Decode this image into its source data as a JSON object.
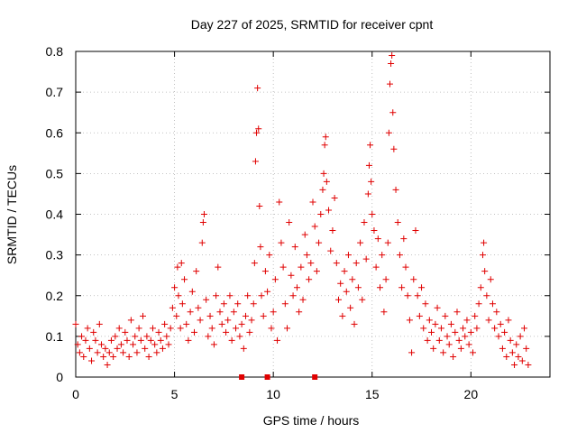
{
  "chart_data": {
    "type": "scatter",
    "title": "Day 227 of 2025, SRMTID for receiver cpnt",
    "xlabel": "GPS time / hours",
    "ylabel": "SRMTID / TECUs",
    "xlim": [
      0,
      24
    ],
    "ylim": [
      0,
      0.8
    ],
    "xticks": [
      0,
      5,
      10,
      15,
      20
    ],
    "xtick_labels": [
      "0",
      "5",
      "10",
      "15",
      "20"
    ],
    "yticks": [
      0,
      0.1,
      0.2,
      0.3,
      0.4,
      0.5,
      0.6,
      0.7,
      0.8
    ],
    "ytick_labels": [
      "0",
      "0.1",
      "0.2",
      "0.3",
      "0.4",
      "0.5",
      "0.6",
      "0.7",
      "0.8"
    ],
    "grid": true,
    "marker": "+",
    "color": "#e00000",
    "baseline_markers_x": [
      8.4,
      9.7,
      12.1
    ],
    "series": [
      {
        "name": "SRMTID",
        "points": [
          [
            0.0,
            0.13
          ],
          [
            0.1,
            0.08
          ],
          [
            0.2,
            0.06
          ],
          [
            0.3,
            0.1
          ],
          [
            0.4,
            0.05
          ],
          [
            0.5,
            0.09
          ],
          [
            0.6,
            0.12
          ],
          [
            0.7,
            0.07
          ],
          [
            0.8,
            0.04
          ],
          [
            0.9,
            0.11
          ],
          [
            1.0,
            0.09
          ],
          [
            1.1,
            0.06
          ],
          [
            1.2,
            0.13
          ],
          [
            1.3,
            0.08
          ],
          [
            1.4,
            0.05
          ],
          [
            1.5,
            0.07
          ],
          [
            1.6,
            0.03
          ],
          [
            1.7,
            0.06
          ],
          [
            1.8,
            0.09
          ],
          [
            1.9,
            0.05
          ],
          [
            2.0,
            0.1
          ],
          [
            2.1,
            0.07
          ],
          [
            2.2,
            0.12
          ],
          [
            2.3,
            0.08
          ],
          [
            2.4,
            0.06
          ],
          [
            2.5,
            0.11
          ],
          [
            2.6,
            0.09
          ],
          [
            2.7,
            0.05
          ],
          [
            2.8,
            0.14
          ],
          [
            2.9,
            0.08
          ],
          [
            3.0,
            0.1
          ],
          [
            3.1,
            0.06
          ],
          [
            3.2,
            0.12
          ],
          [
            3.3,
            0.09
          ],
          [
            3.4,
            0.15
          ],
          [
            3.5,
            0.07
          ],
          [
            3.6,
            0.1
          ],
          [
            3.7,
            0.05
          ],
          [
            3.8,
            0.09
          ],
          [
            3.9,
            0.12
          ],
          [
            4.0,
            0.08
          ],
          [
            4.1,
            0.06
          ],
          [
            4.2,
            0.11
          ],
          [
            4.3,
            0.09
          ],
          [
            4.4,
            0.07
          ],
          [
            4.5,
            0.13
          ],
          [
            4.6,
            0.1
          ],
          [
            4.7,
            0.08
          ],
          [
            4.8,
            0.12
          ],
          [
            4.9,
            0.17
          ],
          [
            5.0,
            0.22
          ],
          [
            5.1,
            0.15
          ],
          [
            5.15,
            0.27
          ],
          [
            5.2,
            0.2
          ],
          [
            5.3,
            0.12
          ],
          [
            5.35,
            0.28
          ],
          [
            5.4,
            0.18
          ],
          [
            5.5,
            0.24
          ],
          [
            5.6,
            0.13
          ],
          [
            5.7,
            0.09
          ],
          [
            5.8,
            0.16
          ],
          [
            5.9,
            0.21
          ],
          [
            6.0,
            0.11
          ],
          [
            6.1,
            0.26
          ],
          [
            6.2,
            0.17
          ],
          [
            6.3,
            0.14
          ],
          [
            6.4,
            0.33
          ],
          [
            6.45,
            0.38
          ],
          [
            6.5,
            0.4
          ],
          [
            6.6,
            0.19
          ],
          [
            6.7,
            0.1
          ],
          [
            6.8,
            0.15
          ],
          [
            6.9,
            0.12
          ],
          [
            7.0,
            0.08
          ],
          [
            7.1,
            0.2
          ],
          [
            7.2,
            0.27
          ],
          [
            7.3,
            0.16
          ],
          [
            7.4,
            0.13
          ],
          [
            7.5,
            0.18
          ],
          [
            7.6,
            0.11
          ],
          [
            7.7,
            0.14
          ],
          [
            7.8,
            0.2
          ],
          [
            7.9,
            0.09
          ],
          [
            8.0,
            0.16
          ],
          [
            8.1,
            0.12
          ],
          [
            8.2,
            0.18
          ],
          [
            8.3,
            0.1
          ],
          [
            8.4,
            0.13
          ],
          [
            8.5,
            0.07
          ],
          [
            8.6,
            0.15
          ],
          [
            8.7,
            0.2
          ],
          [
            8.8,
            0.11
          ],
          [
            8.9,
            0.14
          ],
          [
            9.0,
            0.18
          ],
          [
            9.05,
            0.28
          ],
          [
            9.1,
            0.53
          ],
          [
            9.15,
            0.6
          ],
          [
            9.2,
            0.71
          ],
          [
            9.25,
            0.61
          ],
          [
            9.3,
            0.42
          ],
          [
            9.35,
            0.32
          ],
          [
            9.4,
            0.2
          ],
          [
            9.5,
            0.15
          ],
          [
            9.6,
            0.26
          ],
          [
            9.7,
            0.21
          ],
          [
            9.8,
            0.3
          ],
          [
            9.9,
            0.12
          ],
          [
            10.0,
            0.16
          ],
          [
            10.1,
            0.24
          ],
          [
            10.2,
            0.09
          ],
          [
            10.3,
            0.43
          ],
          [
            10.4,
            0.33
          ],
          [
            10.5,
            0.27
          ],
          [
            10.6,
            0.18
          ],
          [
            10.7,
            0.12
          ],
          [
            10.8,
            0.38
          ],
          [
            10.9,
            0.25
          ],
          [
            11.0,
            0.2
          ],
          [
            11.1,
            0.32
          ],
          [
            11.2,
            0.22
          ],
          [
            11.3,
            0.16
          ],
          [
            11.4,
            0.27
          ],
          [
            11.5,
            0.19
          ],
          [
            11.6,
            0.35
          ],
          [
            11.7,
            0.3
          ],
          [
            11.8,
            0.24
          ],
          [
            11.9,
            0.28
          ],
          [
            12.0,
            0.43
          ],
          [
            12.1,
            0.37
          ],
          [
            12.2,
            0.26
          ],
          [
            12.3,
            0.33
          ],
          [
            12.4,
            0.4
          ],
          [
            12.5,
            0.46
          ],
          [
            12.55,
            0.5
          ],
          [
            12.6,
            0.57
          ],
          [
            12.65,
            0.59
          ],
          [
            12.7,
            0.48
          ],
          [
            12.8,
            0.41
          ],
          [
            12.9,
            0.31
          ],
          [
            13.0,
            0.36
          ],
          [
            13.1,
            0.44
          ],
          [
            13.2,
            0.28
          ],
          [
            13.3,
            0.19
          ],
          [
            13.4,
            0.23
          ],
          [
            13.5,
            0.15
          ],
          [
            13.6,
            0.26
          ],
          [
            13.7,
            0.21
          ],
          [
            13.8,
            0.3
          ],
          [
            13.9,
            0.17
          ],
          [
            14.0,
            0.24
          ],
          [
            14.1,
            0.13
          ],
          [
            14.2,
            0.28
          ],
          [
            14.3,
            0.22
          ],
          [
            14.4,
            0.33
          ],
          [
            14.5,
            0.19
          ],
          [
            14.6,
            0.38
          ],
          [
            14.7,
            0.29
          ],
          [
            14.8,
            0.45
          ],
          [
            14.85,
            0.52
          ],
          [
            14.9,
            0.57
          ],
          [
            14.95,
            0.48
          ],
          [
            15.0,
            0.4
          ],
          [
            15.1,
            0.36
          ],
          [
            15.2,
            0.27
          ],
          [
            15.3,
            0.34
          ],
          [
            15.4,
            0.22
          ],
          [
            15.5,
            0.3
          ],
          [
            15.6,
            0.16
          ],
          [
            15.7,
            0.24
          ],
          [
            15.8,
            0.33
          ],
          [
            15.85,
            0.6
          ],
          [
            15.9,
            0.72
          ],
          [
            15.95,
            0.77
          ],
          [
            16.0,
            0.79
          ],
          [
            16.05,
            0.65
          ],
          [
            16.1,
            0.56
          ],
          [
            16.2,
            0.46
          ],
          [
            16.3,
            0.38
          ],
          [
            16.4,
            0.3
          ],
          [
            16.5,
            0.22
          ],
          [
            16.6,
            0.34
          ],
          [
            16.7,
            0.27
          ],
          [
            16.8,
            0.2
          ],
          [
            16.9,
            0.14
          ],
          [
            17.0,
            0.06
          ],
          [
            17.1,
            0.24
          ],
          [
            17.2,
            0.36
          ],
          [
            17.3,
            0.2
          ],
          [
            17.4,
            0.15
          ],
          [
            17.5,
            0.22
          ],
          [
            17.6,
            0.12
          ],
          [
            17.7,
            0.18
          ],
          [
            17.8,
            0.09
          ],
          [
            17.9,
            0.14
          ],
          [
            18.0,
            0.11
          ],
          [
            18.1,
            0.07
          ],
          [
            18.2,
            0.13
          ],
          [
            18.3,
            0.17
          ],
          [
            18.4,
            0.09
          ],
          [
            18.5,
            0.12
          ],
          [
            18.6,
            0.06
          ],
          [
            18.7,
            0.15
          ],
          [
            18.8,
            0.1
          ],
          [
            18.9,
            0.08
          ],
          [
            19.0,
            0.13
          ],
          [
            19.1,
            0.05
          ],
          [
            19.2,
            0.11
          ],
          [
            19.3,
            0.16
          ],
          [
            19.4,
            0.09
          ],
          [
            19.5,
            0.07
          ],
          [
            19.6,
            0.12
          ],
          [
            19.7,
            0.1
          ],
          [
            19.8,
            0.14
          ],
          [
            19.9,
            0.08
          ],
          [
            20.0,
            0.11
          ],
          [
            20.1,
            0.06
          ],
          [
            20.2,
            0.15
          ],
          [
            20.3,
            0.12
          ],
          [
            20.4,
            0.18
          ],
          [
            20.5,
            0.22
          ],
          [
            20.6,
            0.3
          ],
          [
            20.65,
            0.33
          ],
          [
            20.7,
            0.26
          ],
          [
            20.8,
            0.2
          ],
          [
            20.9,
            0.14
          ],
          [
            21.0,
            0.24
          ],
          [
            21.1,
            0.18
          ],
          [
            21.2,
            0.12
          ],
          [
            21.3,
            0.16
          ],
          [
            21.4,
            0.1
          ],
          [
            21.5,
            0.13
          ],
          [
            21.6,
            0.07
          ],
          [
            21.7,
            0.11
          ],
          [
            21.8,
            0.05
          ],
          [
            21.9,
            0.14
          ],
          [
            22.0,
            0.09
          ],
          [
            22.1,
            0.06
          ],
          [
            22.2,
            0.03
          ],
          [
            22.3,
            0.08
          ],
          [
            22.4,
            0.05
          ],
          [
            22.5,
            0.1
          ],
          [
            22.6,
            0.04
          ],
          [
            22.7,
            0.12
          ],
          [
            22.8,
            0.07
          ],
          [
            22.9,
            0.03
          ]
        ]
      }
    ]
  }
}
